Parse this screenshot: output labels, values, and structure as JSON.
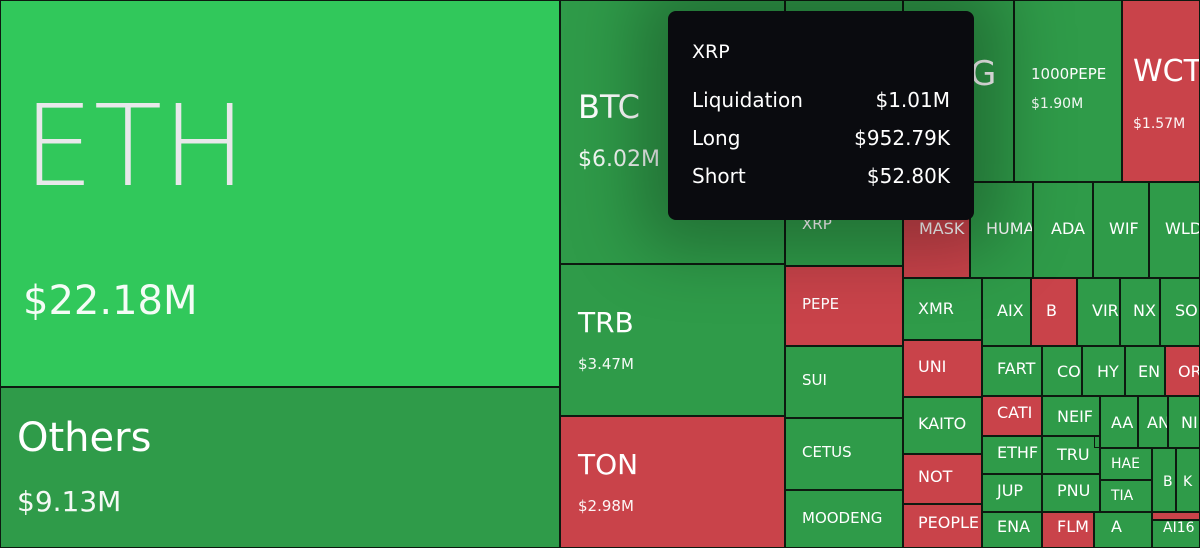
{
  "colors": {
    "long_heavy": "#31c85b",
    "long": "#2f9b49",
    "short": "#c9434a"
  },
  "chart_data": {
    "type": "treemap",
    "items": [
      {
        "symbol": "ETH",
        "value": "$22.18M",
        "side": "long"
      },
      {
        "symbol": "Others",
        "value": "$9.13M",
        "side": "long"
      },
      {
        "symbol": "BTC",
        "value": "$6.02M",
        "side": "long"
      },
      {
        "symbol": "TRB",
        "value": "$3.47M",
        "side": "long"
      },
      {
        "symbol": "TON",
        "value": "$2.98M",
        "side": "short"
      },
      {
        "symbol": "XRP",
        "value": "",
        "side": "long"
      },
      {
        "symbol": "PEPE",
        "value": "",
        "side": "short"
      },
      {
        "symbol": "SUI",
        "value": "",
        "side": "long"
      },
      {
        "symbol": "CETUS",
        "value": "",
        "side": "long"
      },
      {
        "symbol": "MOODENG",
        "value": "",
        "side": "long"
      },
      {
        "symbol": "1000PEPE",
        "value": "$1.90M",
        "side": "long"
      },
      {
        "symbol": "WCT",
        "value": "$1.57M",
        "side": "short"
      },
      {
        "symbol": "G",
        "value": "",
        "side": "long"
      },
      {
        "symbol": "MASK",
        "value": "",
        "side": "short"
      },
      {
        "symbol": "HUMA",
        "value": "",
        "side": "long"
      },
      {
        "symbol": "ADA",
        "value": "",
        "side": "long"
      },
      {
        "symbol": "WIF",
        "value": "",
        "side": "long"
      },
      {
        "symbol": "WLD",
        "value": "",
        "side": "long"
      },
      {
        "symbol": "XMR",
        "value": "",
        "side": "long"
      },
      {
        "symbol": "UNI",
        "value": "",
        "side": "short"
      },
      {
        "symbol": "KAITO",
        "value": "",
        "side": "long"
      },
      {
        "symbol": "NOT",
        "value": "",
        "side": "short"
      },
      {
        "symbol": "PEOPLE",
        "value": "",
        "side": "short"
      },
      {
        "symbol": "AIX",
        "value": "",
        "side": "long"
      },
      {
        "symbol": "B",
        "value": "",
        "side": "short"
      },
      {
        "symbol": "VIR",
        "value": "",
        "side": "long"
      },
      {
        "symbol": "NX",
        "value": "",
        "side": "long"
      },
      {
        "symbol": "SO",
        "value": "",
        "side": "long"
      },
      {
        "symbol": "FART",
        "value": "",
        "side": "long"
      },
      {
        "symbol": "CO",
        "value": "",
        "side": "long"
      },
      {
        "symbol": "HY",
        "value": "",
        "side": "long"
      },
      {
        "symbol": "EN",
        "value": "",
        "side": "long"
      },
      {
        "symbol": "OR",
        "value": "",
        "side": "short"
      },
      {
        "symbol": "CATI",
        "value": "",
        "side": "short"
      },
      {
        "symbol": "NEIF",
        "value": "",
        "side": "long"
      },
      {
        "symbol": "AA",
        "value": "",
        "side": "long"
      },
      {
        "symbol": "AN",
        "value": "",
        "side": "long"
      },
      {
        "symbol": "NI",
        "value": "",
        "side": "long"
      },
      {
        "symbol": "ETHF",
        "value": "",
        "side": "long"
      },
      {
        "symbol": "TRU",
        "value": "",
        "side": "long"
      },
      {
        "symbol": "HAE",
        "value": "",
        "side": "long"
      },
      {
        "symbol": "B",
        "value": "",
        "side": "long"
      },
      {
        "symbol": "K",
        "value": "",
        "side": "long"
      },
      {
        "symbol": "JUP",
        "value": "",
        "side": "long"
      },
      {
        "symbol": "PNU",
        "value": "",
        "side": "long"
      },
      {
        "symbol": "TIA",
        "value": "",
        "side": "long"
      },
      {
        "symbol": "ENA",
        "value": "",
        "side": "long"
      },
      {
        "symbol": "FLM",
        "value": "",
        "side": "short"
      },
      {
        "symbol": "A",
        "value": "",
        "side": "long"
      },
      {
        "symbol": "AI16",
        "value": "",
        "side": "long"
      },
      {
        "symbol": "",
        "value": "",
        "side": "short"
      },
      {
        "symbol": "",
        "value": "",
        "side": "long"
      },
      {
        "symbol": "",
        "value": "",
        "side": "long"
      },
      {
        "symbol": "",
        "value": "",
        "side": "long"
      }
    ]
  },
  "tooltip": {
    "title": "XRP",
    "rows": [
      {
        "label": "Liquidation",
        "value": "$1.01M"
      },
      {
        "label": "Long",
        "value": "$952.79K"
      },
      {
        "label": "Short",
        "value": "$52.80K"
      }
    ]
  }
}
